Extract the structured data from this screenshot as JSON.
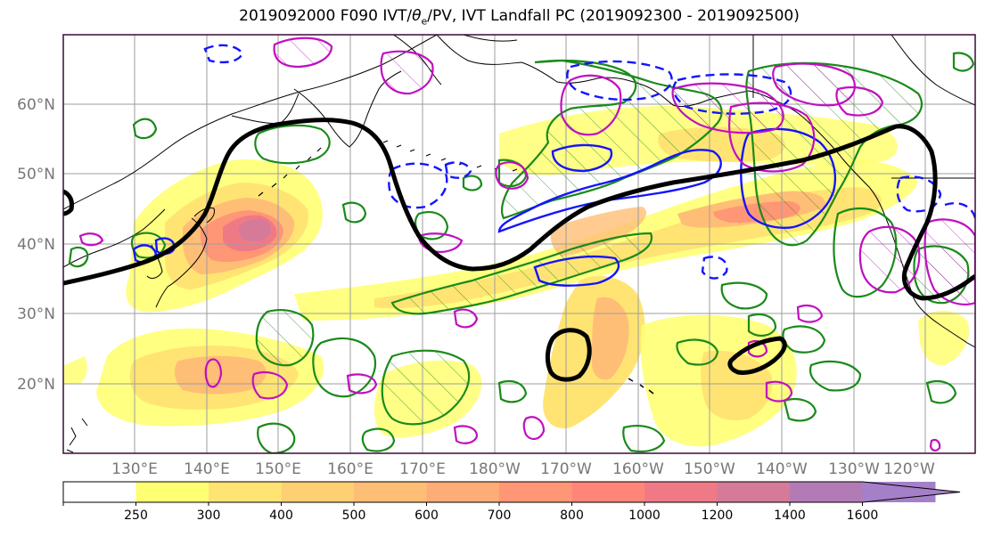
{
  "title_parts": {
    "prefix": "2019092000 F090 IVT/",
    "theta": "θ",
    "sub": "e",
    "suffix": "/PV, IVT Landfall PC (2019092300 - 2019092500)"
  },
  "lat_labels": [
    "60°N",
    "50°N",
    "40°N",
    "30°N",
    "20°N"
  ],
  "lon_labels": [
    "130°E",
    "140°E",
    "150°E",
    "160°E",
    "170°E",
    "180°W",
    "170°W",
    "160°W",
    "150°W",
    "140°W",
    "130°W",
    "120°W"
  ],
  "colorbar": {
    "ticks": [
      "250",
      "300",
      "400",
      "500",
      "600",
      "700",
      "800",
      "1000",
      "1200",
      "1400",
      "1600"
    ],
    "colors": [
      "#ffffff",
      "#ffff73",
      "#ffe473",
      "#ffd073",
      "#ffbe76",
      "#ffad76",
      "#ff9676",
      "#ff8579",
      "#ef7a86",
      "#d57a99",
      "#b27bb6",
      "#a480c8"
    ]
  },
  "colors": {
    "frame": "#3a0a3a",
    "coast": "#000000",
    "grid": "#9e9e9e",
    "green_contour": "#1a8a1a",
    "blue_contour": "#1414ff",
    "magenta_contour": "#c010c0",
    "pv_contour": "#000000"
  }
}
